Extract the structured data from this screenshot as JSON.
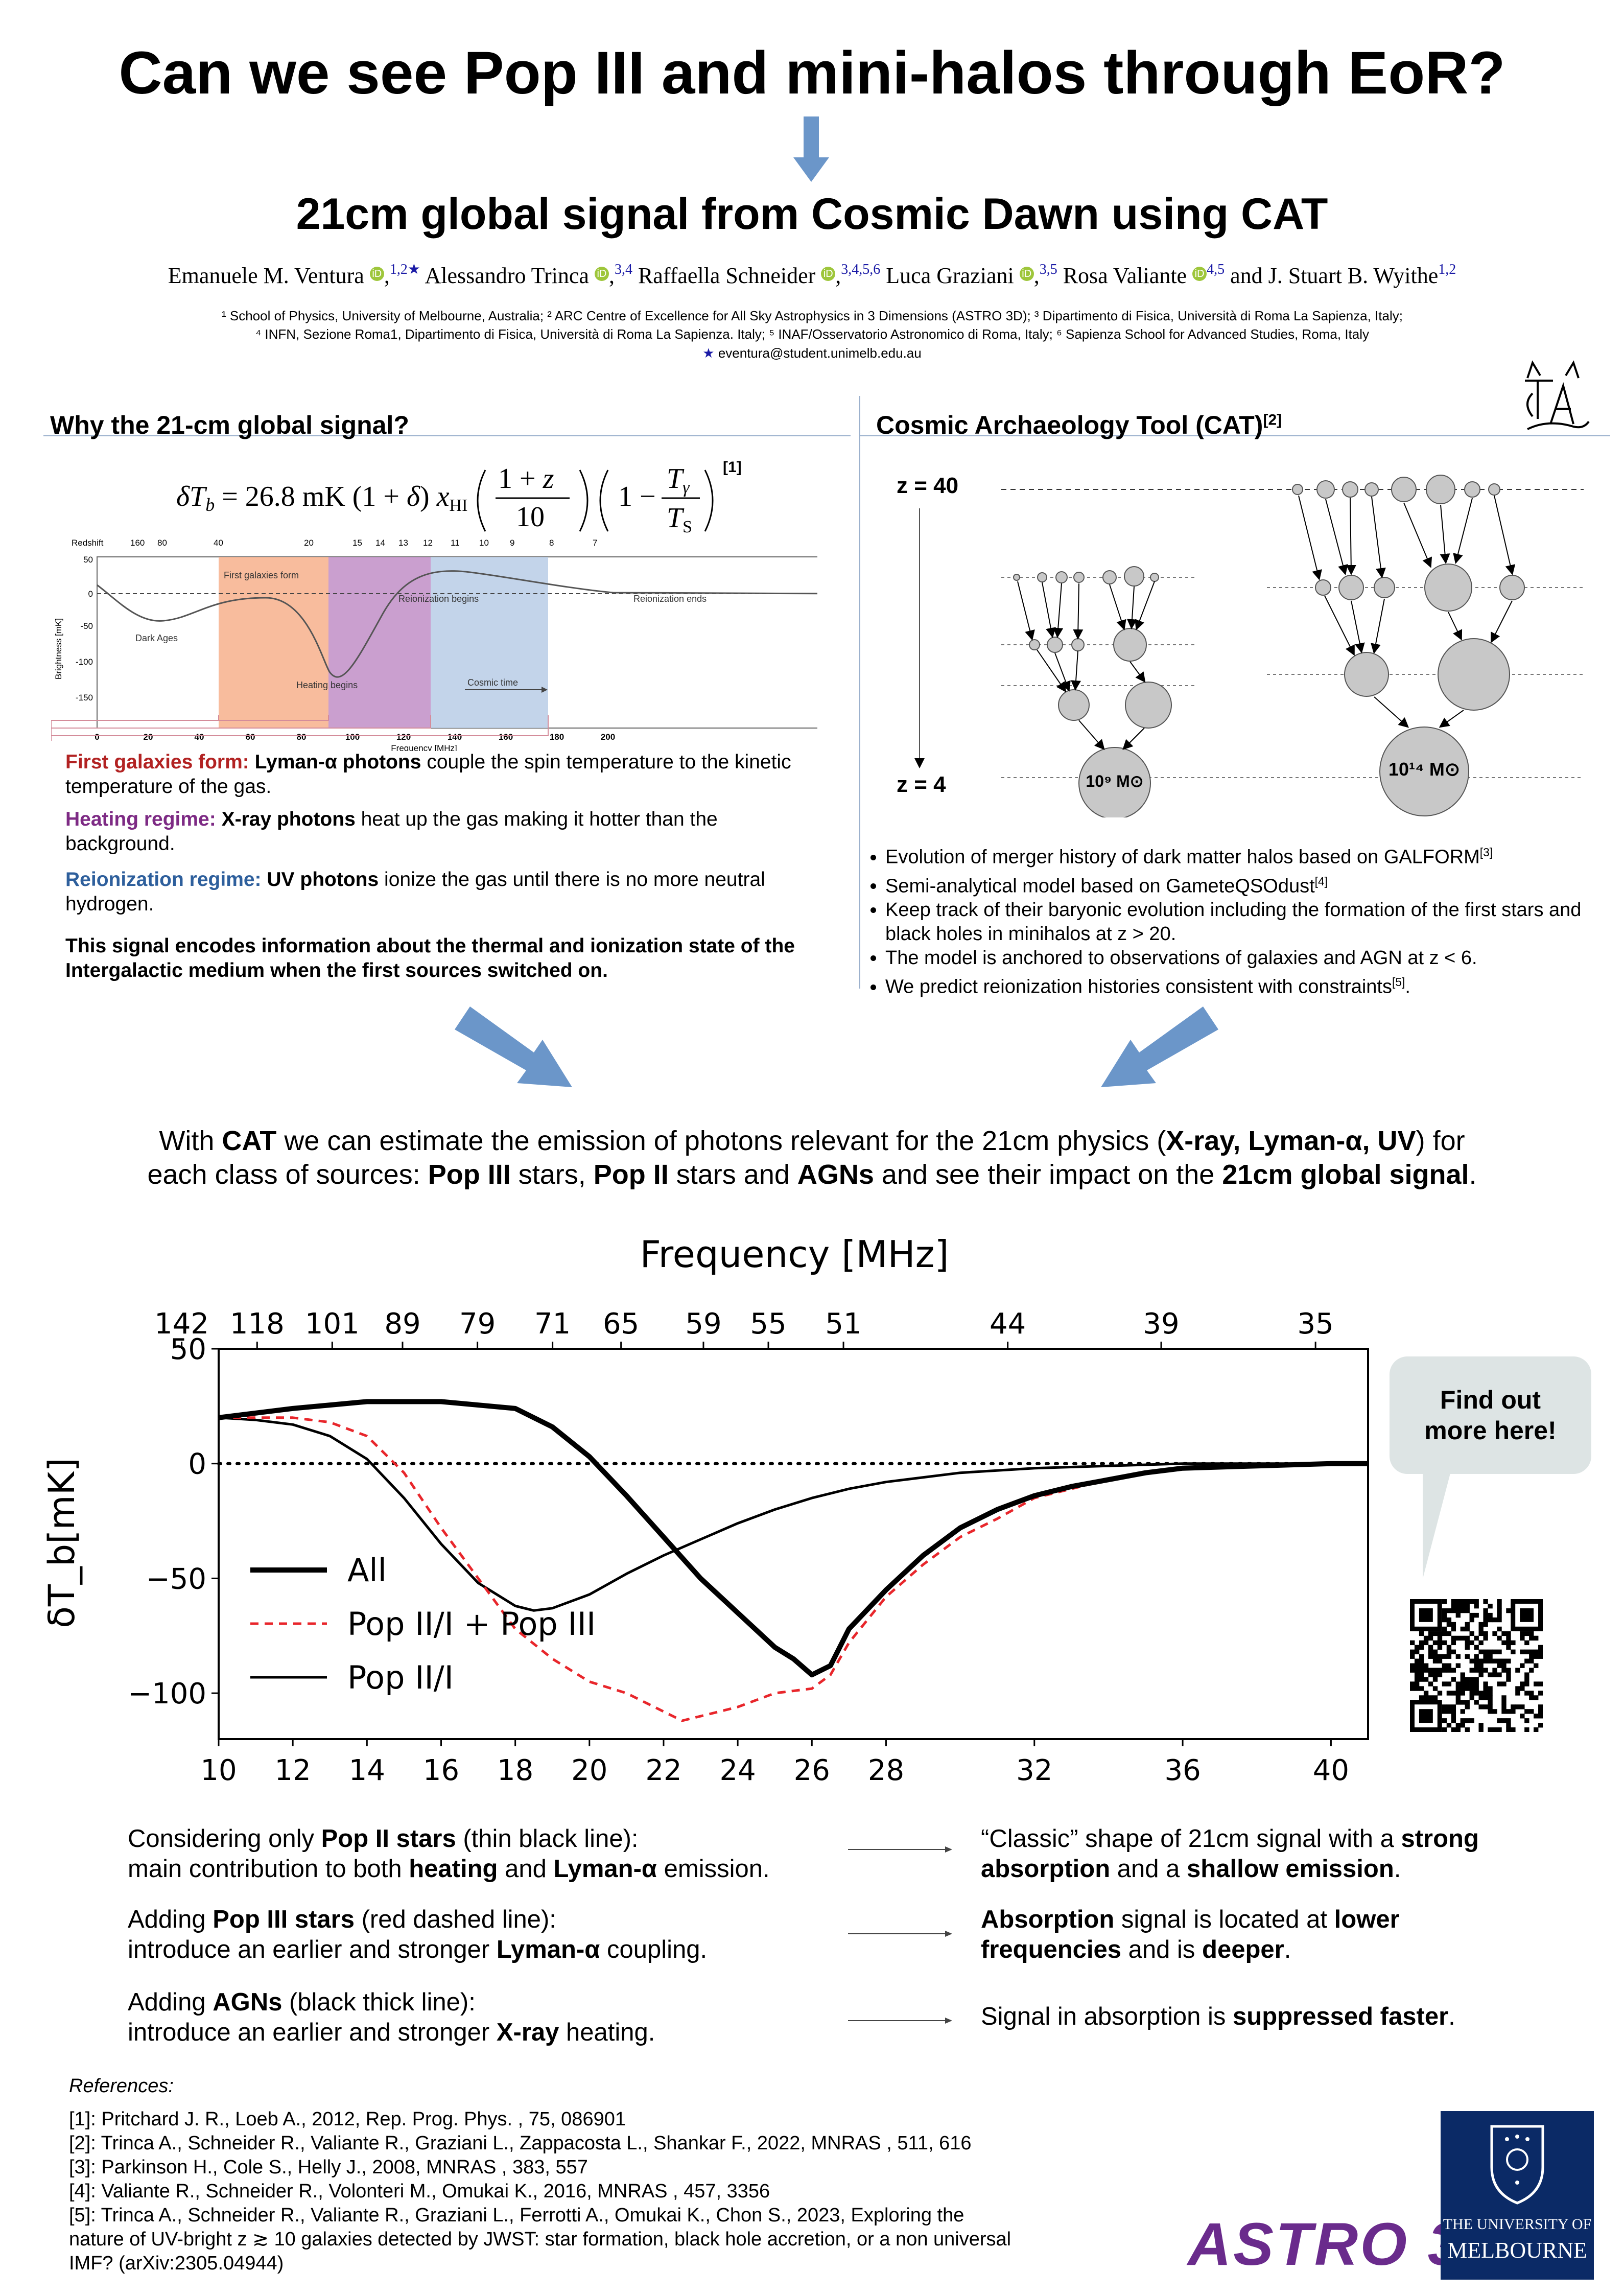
{
  "title": "Can we see Pop III and mini-halos through EoR?",
  "subtitle": "21cm global signal from Cosmic Dawn using CAT",
  "authors": [
    {
      "name": "Emanuele M. Ventura",
      "aff": "1,2★"
    },
    {
      "name": "Alessandro Trinca",
      "aff": "3,4"
    },
    {
      "name": "Raffaella Schneider",
      "aff": "3,4,5,6"
    },
    {
      "name": "Luca Graziani",
      "aff": "3,5"
    },
    {
      "name": "Rosa Valiante",
      "aff": "4,5"
    }
  ],
  "authors_tail": " and J. Stuart B. Wyithe",
  "authors_tail_aff": "1,2",
  "affiliations_line1": "¹ School of Physics, University of Melbourne, Australia;  ² ARC Centre of Excellence for All Sky Astrophysics in 3 Dimensions (ASTRO 3D);  ³ Dipartimento di Fisica, Università di Roma La Sapienza, Italy;",
  "affiliations_line2": "⁴ INFN, Sezione Roma1, Dipartimento di Fisica, Università di Roma La Sapienza. Italy;  ⁵ INAF/Osservatorio Astronomico di Roma, Italy; ⁶ Sapienza School for Advanced Studies, Roma, Italy",
  "email": "eventura@student.unimelb.edu.au",
  "left": {
    "heading": "Why the 21-cm global signal?",
    "eq_ref": "[1]",
    "fig": {
      "redshift_label": "Redshift",
      "redshift_ticks": [
        "160",
        "80",
        "40",
        "20",
        "15",
        "14",
        "13",
        "12",
        "11",
        "10",
        "9",
        "8",
        "7"
      ],
      "ylabel": "Brightness [mK]",
      "yticks": [
        "50",
        "0",
        "-50",
        "-100",
        "-150"
      ],
      "xlabel": "Frequency [MHz]",
      "xticks": [
        "0",
        "20",
        "40",
        "60",
        "80",
        "100",
        "120",
        "140",
        "160",
        "180",
        "200"
      ],
      "labels": {
        "first": "First galaxies form",
        "reion_begins": "Reionization begins",
        "reion_ends": "Reionization ends",
        "dark_ages": "Dark Ages",
        "heating": "Heating begins",
        "cosmic_time": "Cosmic time"
      }
    },
    "p1_label": "First galaxies form:",
    "p1_bold": "Lyman-α photons",
    "p1_rest": " couple the spin temperature to the kinetic temperature of the gas.",
    "p2_label": "Heating regime:",
    "p2_bold": "X-ray photons",
    "p2_rest": " heat up the gas making it hotter than the background.",
    "p3_label": "Reionization regime:",
    "p3_bold": "UV photons",
    "p3_rest": " ionize the gas until there is no more neutral hydrogen.",
    "summary": "This signal encodes information about the thermal and ionization state of the Intergalactic medium when the first sources switched on."
  },
  "right": {
    "heading": "Cosmic Archaeology Tool (CAT)",
    "heading_ref": "[2]",
    "z_top": "z = 40",
    "z_bottom": "z = 4",
    "halo_small": "10⁹ M⊙",
    "halo_large": "10¹⁴ M⊙",
    "bullets": [
      {
        "text": "Evolution of merger history of dark matter halos based on GALFORM",
        "ref": "[3]"
      },
      {
        "text": "Semi-analytical model based on GameteQSOdust",
        "ref": "[4]"
      },
      {
        "text": "Keep track of their baryonic evolution including the formation of the first stars and black holes in minihalos at z > 20.",
        "ref": ""
      },
      {
        "text": "The model is anchored to observations of galaxies and AGN at z < 6.",
        "ref": ""
      },
      {
        "text": "We predict reionization histories consistent with constraints",
        "ref": "[5]",
        "tail": "."
      }
    ]
  },
  "central": {
    "t1": "With ",
    "b1": "CAT",
    "t2": " we can estimate the emission of photons relevant for the 21cm physics (",
    "b2": "X-ray, Lyman-α, UV",
    "t3": ") for",
    "t4": "each class of sources: ",
    "b3": "Pop III",
    "t5": " stars, ",
    "b4": "Pop II",
    "t6": " stars and ",
    "b5": "AGNs",
    "t7": " and see their impact on the ",
    "b6": "21cm global signal",
    "t8": "."
  },
  "chart_data": {
    "type": "line",
    "top_axis_label": "Frequency [MHz]",
    "top_ticks": [
      "142",
      "118",
      "101",
      "89",
      "79",
      "71",
      "65",
      "59",
      "55",
      "51",
      "44",
      "39",
      "35"
    ],
    "ylabel": "δT_b[mK]",
    "xlim": [
      10,
      41
    ],
    "ylim": [
      -120,
      50
    ],
    "xticks": [
      10,
      12,
      14,
      16,
      18,
      20,
      22,
      24,
      26,
      28,
      32,
      36,
      40
    ],
    "yticks": [
      50,
      0,
      -50,
      -100
    ],
    "series": [
      {
        "name": "All",
        "style": "thick",
        "x": [
          10,
          12,
          14,
          16,
          18,
          19,
          20,
          21,
          22,
          23,
          24,
          25,
          25.5,
          26,
          26.5,
          27,
          28,
          29,
          30,
          31,
          32,
          33,
          34,
          35,
          36,
          38,
          40,
          41
        ],
        "y": [
          20,
          24,
          27,
          27,
          24,
          16,
          3,
          -14,
          -32,
          -50,
          -65,
          -80,
          -85,
          -92,
          -88,
          -72,
          -55,
          -40,
          -28,
          -20,
          -14,
          -10,
          -7,
          -4,
          -2,
          -1,
          0,
          0
        ]
      },
      {
        "name": "Pop II/I + Pop III",
        "style": "dashed-red",
        "x": [
          10,
          12,
          13,
          14,
          15,
          16,
          17,
          18,
          19,
          20,
          21,
          22,
          22.5,
          23,
          24,
          25,
          26,
          26.5,
          27,
          28,
          29,
          30,
          31,
          32,
          33,
          34,
          35,
          36,
          38,
          40,
          41
        ],
        "y": [
          20,
          20,
          18,
          12,
          -4,
          -28,
          -50,
          -72,
          -85,
          -95,
          -100,
          -108,
          -112,
          -110,
          -106,
          -100,
          -98,
          -92,
          -78,
          -58,
          -44,
          -32,
          -24,
          -15,
          -11,
          -7,
          -4,
          -2,
          -1,
          0,
          0
        ]
      },
      {
        "name": "Pop II/I",
        "style": "thin",
        "x": [
          10,
          11,
          12,
          13,
          14,
          15,
          16,
          17,
          18,
          18.5,
          19,
          20,
          21,
          22,
          23,
          24,
          25,
          26,
          27,
          28,
          30,
          32,
          34,
          36,
          38,
          40,
          41
        ],
        "y": [
          20,
          19,
          17,
          12,
          2,
          -15,
          -35,
          -52,
          -62,
          -64,
          -63,
          -57,
          -48,
          -40,
          -33,
          -26,
          -20,
          -15,
          -11,
          -8,
          -4,
          -2,
          -1,
          0,
          0,
          0,
          0
        ]
      }
    ]
  },
  "find_out": "Find out more here!",
  "conclusions": [
    {
      "l1a": "Considering only ",
      "l1b": "Pop II stars",
      "l1c": " (thin black line):",
      "l2a": "main contribution to both ",
      "l2b": "heating",
      "l2c": " and ",
      "l2d": "Lyman-α",
      "l2e": " emission.",
      "r1a": "“Classic” shape of 21cm signal with a ",
      "r1b": "strong",
      "r2a": "absorption",
      "r2b": " and a ",
      "r2c": "shallow emission",
      "r2d": "."
    },
    {
      "l1a": "Adding ",
      "l1b": "Pop III stars",
      "l1c": " (red dashed line):",
      "l2a": "introduce an earlier and stronger ",
      "l2b": "Lyman-α",
      "l2c": " coupling.",
      "r1a": "Absorption",
      "r1b": " signal is located at ",
      "r1c": "lower",
      "r2a": "frequencies",
      "r2b": " and is ",
      "r2c": "deeper",
      "r2d": "."
    },
    {
      "l1a": "Adding ",
      "l1b": "AGNs",
      "l1c": " (black thick line):",
      "l2a": "introduce an earlier and stronger ",
      "l2b": "X-ray",
      "l2c": " heating.",
      "r1a": "Signal in absorption is ",
      "r1b": "suppressed faster",
      "r1c": "."
    }
  ],
  "references": {
    "heading": "References:",
    "items": [
      "[1]: Pritchard J. R., Loeb A., 2012, Rep. Prog. Phys. , 75, 086901",
      "[2]: Trinca A., Schneider R., Valiante R., Graziani L., Zappacosta L., Shankar F., 2022, MNRAS , 511, 616",
      "[3]: Parkinson H., Cole S., Helly J., 2008, MNRAS , 383, 557",
      "[4]: Valiante R., Schneider R., Volonteri M., Omukai K., 2016, MNRAS , 457, 3356",
      "[5]: Trinca A., Schneider R., Valiante R., Graziani L., Ferrotti A., Omukai K., Chon S., 2023, Exploring the",
      "nature of UV-bright z ≳ 10 galaxies detected by JWST: star formation, black hole accretion, or a non universal",
      "IMF? (arXiv:2305.04944)"
    ]
  },
  "logos": {
    "astro3d": "ASTRO 3D",
    "melb_line1": "THE UNIVERSITY OF",
    "melb_line2": "MELBOURNE"
  },
  "colors": {
    "arrow": "#6b96c9",
    "red": "#b22222",
    "purple": "#7d2a84",
    "blue": "#2e5f9c",
    "astro": "#6a2b8c",
    "melb": "#0b2a66"
  }
}
